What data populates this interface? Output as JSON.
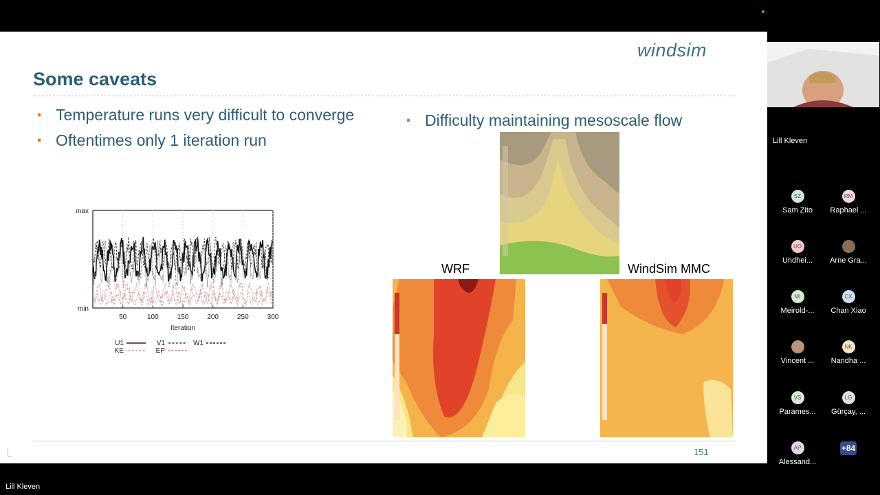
{
  "slide": {
    "logo": "windsim",
    "title": "Some caveats",
    "bullets_left": [
      "Temperature runs very difficult to converge",
      "Oftentimes only 1 iteration run"
    ],
    "bullet_right": "Difficulty maintaining mesoscale flow",
    "page_number": "151",
    "bullet_color": "#e07b3c",
    "title_color": "#2c5e78",
    "panels": {
      "left_label": "WRF",
      "right_label": "WindSim MMC"
    }
  },
  "chart_data": {
    "type": "line",
    "xlabel": "Iteration",
    "ylabel": "",
    "x_ticks": [
      50,
      100,
      150,
      200,
      250,
      300
    ],
    "y_ticks": [
      "max",
      "min"
    ],
    "xlim": [
      0,
      300
    ],
    "series": [
      {
        "name": "U1",
        "style": "solid-black"
      },
      {
        "name": "V1",
        "style": "dotted-gray"
      },
      {
        "name": "W1",
        "style": "dashed-black"
      },
      {
        "name": "KE",
        "style": "dotted-red"
      },
      {
        "name": "EP",
        "style": "dashed-red"
      }
    ]
  },
  "participants": {
    "presenter": "Lill Kleven",
    "speaker_label": "Lill Kleven",
    "tiles": [
      {
        "initials": "SZ",
        "name": "Sam Zito",
        "color": "#cfe6d6"
      },
      {
        "initials": "RM",
        "name": "Raphael ...",
        "color": "#f2d3de"
      },
      {
        "initials": "UO",
        "name": "Undhei...",
        "color": "#f5c9cc"
      },
      {
        "initials": "",
        "name": "Arne Gra...",
        "color": "#8a6d57"
      },
      {
        "initials": "MI",
        "name": "Meirold-...",
        "color": "#d6ecd2"
      },
      {
        "initials": "CX",
        "name": "Chan Xiao",
        "color": "#cde0f2"
      },
      {
        "initials": "",
        "name": "Vincent ...",
        "color": "#b8967d"
      },
      {
        "initials": "NK",
        "name": "Nandha ...",
        "color": "#f6e3c2"
      },
      {
        "initials": "VS",
        "name": "Parames...",
        "color": "#d6ecd2"
      },
      {
        "initials": "LG",
        "name": "Gürçay, ...",
        "color": "#e0e0e0"
      },
      {
        "initials": "AP",
        "name": "Alessand...",
        "color": "#ead3ee"
      },
      {
        "initials": "+84",
        "name": "",
        "color": "#3b4a86"
      }
    ]
  }
}
